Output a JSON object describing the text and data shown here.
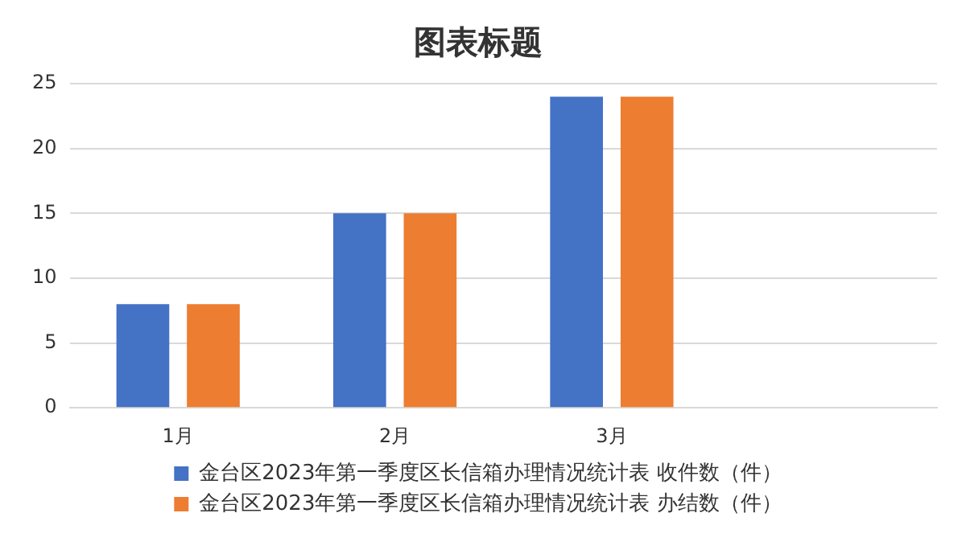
{
  "chart_data": {
    "type": "bar",
    "title": "图表标题",
    "categories": [
      "1月",
      "2月",
      "3月",
      null
    ],
    "series": [
      {
        "name": "金台区2023年第一季度区长信箱办理情况统计表 收件数（件）",
        "color": "#4472c4",
        "values": [
          8,
          15,
          24,
          null
        ]
      },
      {
        "name": "金台区2023年第一季度区长信箱办理情况统计表 办结数（件）",
        "color": "#ed7d31",
        "values": [
          8,
          15,
          24,
          null
        ]
      }
    ],
    "ylim": [
      0,
      25
    ],
    "yticks": [
      0,
      5,
      10,
      15,
      20,
      25
    ],
    "grid": "y",
    "legend": "bottom"
  }
}
